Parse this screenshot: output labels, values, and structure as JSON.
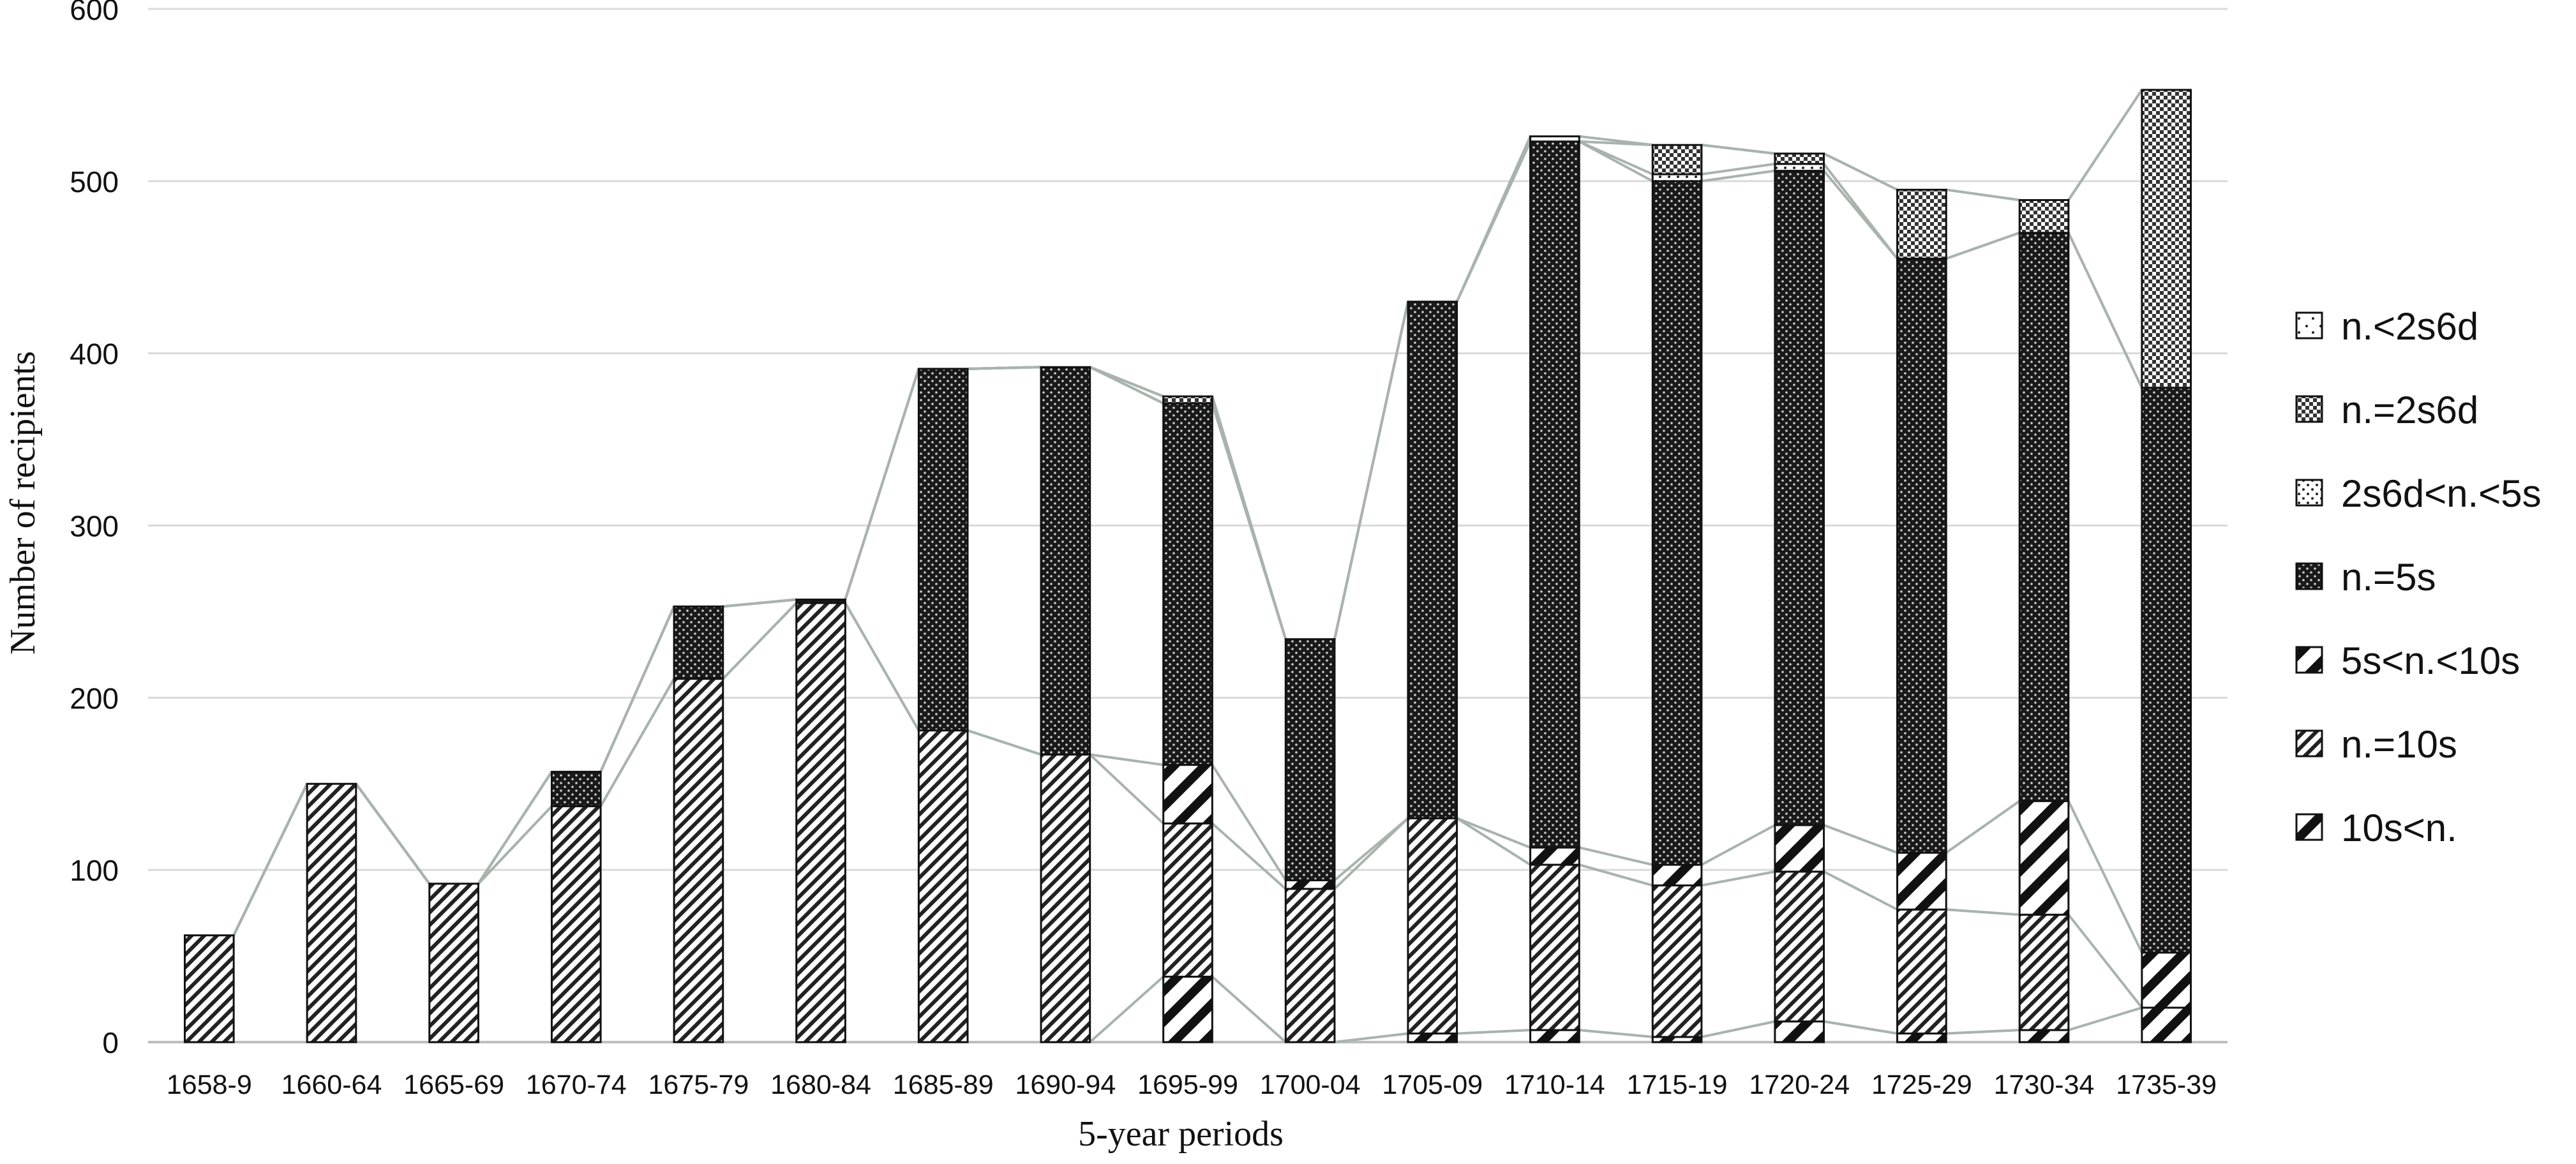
{
  "chart_data": {
    "type": "bar",
    "stacked": true,
    "title": "",
    "xlabel": "5-year periods",
    "ylabel": "Number of recipients",
    "ylim": [
      0,
      600
    ],
    "yticks": [
      0,
      100,
      200,
      300,
      400,
      500,
      600
    ],
    "grid": true,
    "legend_position": "right",
    "categories": [
      "1658-9",
      "1660-64",
      "1665-69",
      "1670-74",
      "1675-79",
      "1680-84",
      "1685-89",
      "1690-94",
      "1695-99",
      "1700-04",
      "1705-09",
      "1710-14",
      "1715-19",
      "1720-24",
      "1725-29",
      "1730-34",
      "1735-39"
    ],
    "series": [
      {
        "name": "10s<n.",
        "pattern": "hatch-wide",
        "values": [
          0,
          0,
          0,
          0,
          0,
          0,
          0,
          0,
          38,
          0,
          5,
          7,
          3,
          12,
          5,
          7,
          20
        ]
      },
      {
        "name": "n.=10s",
        "pattern": "hatch-dense",
        "values": [
          62,
          150,
          92,
          137,
          211,
          255,
          181,
          167,
          89,
          89,
          125,
          96,
          88,
          87,
          72,
          67,
          0
        ]
      },
      {
        "name": "5s<n.<10s",
        "pattern": "hatch-wide",
        "values": [
          0,
          0,
          0,
          0,
          0,
          0,
          0,
          0,
          34,
          5,
          0,
          10,
          12,
          27,
          33,
          66,
          32
        ]
      },
      {
        "name": "n.=5s",
        "pattern": "dots-dark",
        "values": [
          0,
          0,
          0,
          20,
          42,
          2,
          210,
          225,
          210,
          140,
          300,
          410,
          397,
          380,
          345,
          330,
          328
        ]
      },
      {
        "name": "2s6d<n.<5s",
        "pattern": "dots-light",
        "values": [
          0,
          0,
          0,
          0,
          0,
          0,
          0,
          0,
          0,
          0,
          0,
          0,
          4,
          4,
          0,
          0,
          0
        ]
      },
      {
        "name": "n.=2s6d",
        "pattern": "checker",
        "values": [
          0,
          0,
          0,
          0,
          0,
          0,
          0,
          0,
          4,
          0,
          0,
          0,
          17,
          6,
          40,
          19,
          173
        ]
      },
      {
        "name": "n.<2s6d",
        "pattern": "scatter",
        "values": [
          0,
          0,
          0,
          0,
          0,
          0,
          0,
          0,
          0,
          0,
          0,
          3,
          0,
          0,
          0,
          0,
          0
        ]
      }
    ]
  }
}
